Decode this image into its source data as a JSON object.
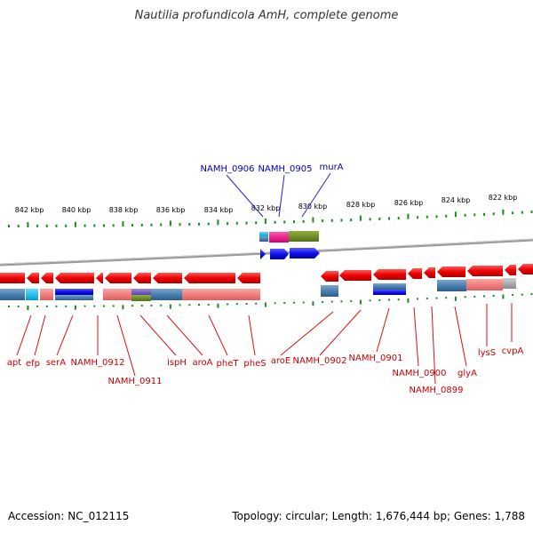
{
  "title": "Nautilia profundicola AmH, complete genome",
  "footer": {
    "accession": "Accession: NC_012115",
    "summary": "Topology: circular; Length: 1,676,444 bp; Genes: 1,788"
  },
  "colors": {
    "gene_red": "#ee0000",
    "gene_blue": "#1010ee",
    "label_red": "#cc0000",
    "label_blue": "#0000bb",
    "tick_green": "#1e8a1e",
    "backbone": "#888888",
    "steel_blue": "#4a80b0",
    "salmon": "#f08080",
    "cyan": "#00b8e8",
    "magenta": "#ee1188",
    "olive": "#6b8e23",
    "purple": "#7b5cc8",
    "grey": "#a8a8a8"
  },
  "ruler": {
    "labels": [
      "842 kbp",
      "840 kbp",
      "838 kbp",
      "836 kbp",
      "834 kbp",
      "832 kbp",
      "830 kbp",
      "828 kbp",
      "826 kbp",
      "824 kbp",
      "822 kbp"
    ]
  },
  "genes": {
    "blue_labels": [
      "NAMH_0906",
      "NAMH_0905",
      "murA"
    ],
    "red_labels": [
      "apt",
      "efp",
      "serA",
      "NAMH_0912",
      "NAMH_0911",
      "ispH",
      "aroA",
      "pheT",
      "pheS",
      "aroE",
      "NAMH_0902",
      "NAMH_0901",
      "NAMH_0900",
      "NAMH_0899",
      "glyA",
      "lysS",
      "cvpA"
    ]
  }
}
